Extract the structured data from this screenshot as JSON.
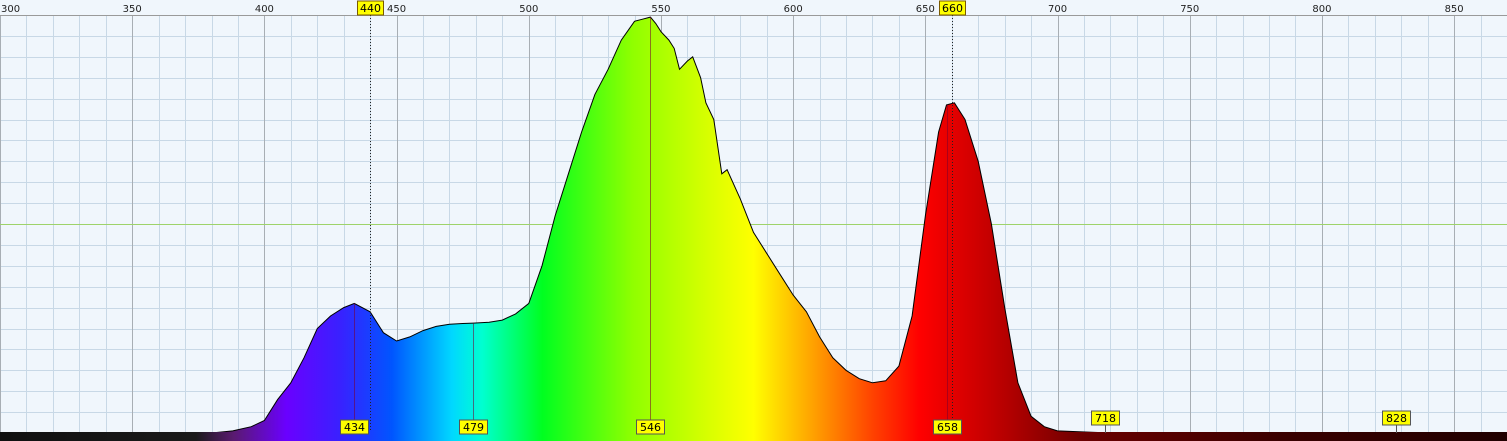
{
  "chart_data": {
    "type": "area",
    "title": "",
    "xlabel": "",
    "ylabel": "",
    "xlim": [
      300,
      870
    ],
    "ylim": [
      0,
      100
    ],
    "grid": true,
    "x_ticks": [
      300,
      350,
      400,
      450,
      500,
      550,
      600,
      650,
      700,
      750,
      800,
      850
    ],
    "x_tick_labels": [
      "300",
      "350",
      "400",
      "450",
      "500",
      "550",
      "600",
      "650",
      "700",
      "750",
      "800",
      "850"
    ],
    "series": [
      {
        "x": [
          300,
          380,
          388,
          395,
          400,
          405,
          410,
          415,
          420,
          425,
          430,
          434,
          440,
          445,
          450,
          455,
          460,
          465,
          470,
          475,
          479,
          485,
          490,
          495,
          500,
          505,
          510,
          515,
          520,
          525,
          530,
          535,
          540,
          543,
          546,
          548,
          550,
          553,
          555,
          557,
          560,
          562,
          565,
          567,
          570,
          573,
          575,
          580,
          585,
          590,
          595,
          600,
          605,
          610,
          615,
          620,
          625,
          630,
          635,
          640,
          645,
          650,
          655,
          658,
          661,
          665,
          670,
          675,
          680,
          685,
          690,
          695,
          700,
          720,
          750,
          800,
          830,
          870
        ],
        "y": [
          0,
          0,
          0.5,
          1.5,
          3,
          8,
          12,
          18,
          25,
          28,
          30,
          31,
          29,
          24,
          22,
          23,
          24.5,
          25.5,
          26,
          26.2,
          26.3,
          26.5,
          27,
          28.5,
          31,
          40,
          52,
          62,
          72,
          81,
          87,
          94,
          98.5,
          99,
          99.5,
          98,
          96,
          94,
          92,
          87,
          89,
          90,
          85,
          79,
          75,
          62,
          63,
          56,
          48,
          43,
          38,
          33,
          29,
          23,
          18,
          15,
          13,
          12,
          12.5,
          16,
          28,
          52,
          72,
          78.5,
          79,
          75,
          65,
          50,
          30,
          12,
          4,
          1.5,
          0.5,
          0,
          0,
          0,
          0,
          0
        ]
      }
    ],
    "peak_markers": [
      "434",
      "479",
      "546",
      "658",
      "718",
      "828"
    ],
    "top_markers": [
      "440",
      "660"
    ]
  }
}
